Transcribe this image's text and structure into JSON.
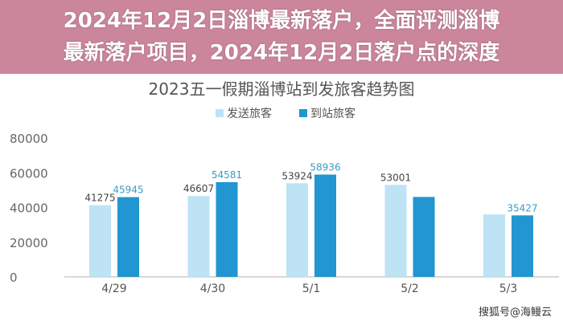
{
  "chart_data": {
    "type": "bar",
    "title": "2023五一假期淄博站到发旅客趋势图",
    "xlabel": "",
    "ylabel": "",
    "categories": [
      "4/29",
      "4/30",
      "5/1",
      "5/2",
      "5/3"
    ],
    "series": [
      {
        "name": "发送旅客",
        "color": "#bde3f5",
        "values": [
          41275,
          46607,
          53924,
          53001,
          36000
        ],
        "labels": [
          "41275",
          "46607",
          "53924",
          "53001",
          ""
        ]
      },
      {
        "name": "到站旅客",
        "color": "#2196d0",
        "values": [
          45945,
          54581,
          58936,
          46048,
          35427
        ],
        "labels": [
          "45945",
          "54581",
          "58936",
          "",
          "35427"
        ]
      }
    ],
    "ylim": [
      0,
      80000
    ],
    "yticks": [
      "0",
      "20000",
      "40000",
      "60000",
      "80000"
    ],
    "grid": false,
    "legend": "top-center"
  },
  "banner": {
    "line1": "2024年12月2日淄博最新落户，全面评测淄博",
    "line2": "最新落户项目，2024年12月2日落户点的深度"
  },
  "credit": "搜狐号@海鳗云"
}
